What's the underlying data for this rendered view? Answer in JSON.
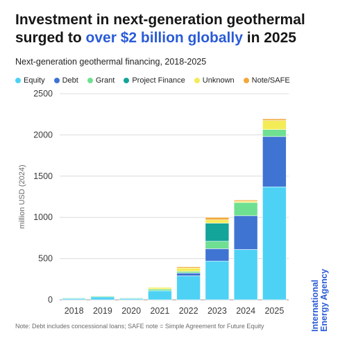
{
  "title": {
    "part1": "Investment in next-generation geothermal surged to ",
    "highlight": "over $2 billion globally",
    "part2": " in 2025"
  },
  "chart_data": {
    "type": "bar",
    "stacked": true,
    "subtitle": "Next-generation geothermal financing, 2018-2025",
    "ylabel": "million USD (2024)",
    "xlabel": "",
    "ylim": [
      0,
      2500
    ],
    "yticks": [
      0,
      500,
      1000,
      1500,
      2000,
      2500
    ],
    "grid": true,
    "legend_position": "top",
    "categories": [
      "2018",
      "2019",
      "2020",
      "2021",
      "2022",
      "2023",
      "2024",
      "2025"
    ],
    "series": [
      {
        "name": "Equity",
        "color": "#4dd2f5",
        "values": [
          15,
          35,
          15,
          110,
          290,
          470,
          610,
          1370
        ]
      },
      {
        "name": "Debt",
        "color": "#3f74d3",
        "values": [
          0,
          0,
          0,
          0,
          35,
          150,
          410,
          610
        ]
      },
      {
        "name": "Grant",
        "color": "#6fe091",
        "values": [
          8,
          12,
          8,
          20,
          20,
          90,
          160,
          85
        ]
      },
      {
        "name": "Project Finance",
        "color": "#13a49a",
        "values": [
          0,
          0,
          0,
          0,
          0,
          220,
          0,
          0
        ]
      },
      {
        "name": "Unknown",
        "color": "#f3ec57",
        "values": [
          2,
          5,
          2,
          20,
          40,
          40,
          15,
          110
        ]
      },
      {
        "name": "Note/SAFE",
        "color": "#f2a93b",
        "values": [
          0,
          0,
          0,
          5,
          15,
          30,
          15,
          20
        ]
      }
    ]
  },
  "note": "Note: Debt includes concessional loans; SAFE note = Simple Agreement for Future Equity",
  "brand": {
    "line1": "International",
    "line2": "Energy Agency"
  }
}
